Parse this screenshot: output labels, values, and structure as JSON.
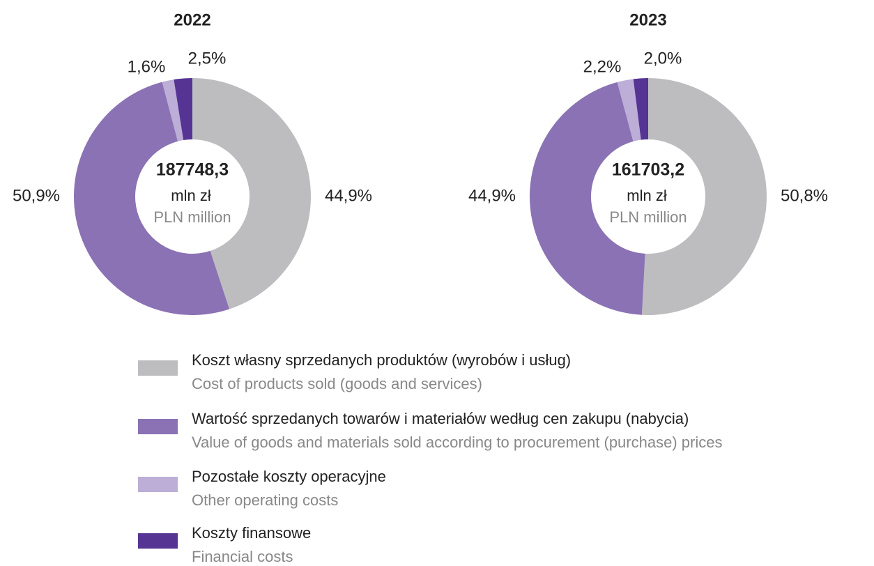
{
  "categories": [
    {
      "label": "Koszt własny sprzedanych produktów (wyrobów i usług)",
      "sublabel": "Cost of products sold (goods and services)"
    },
    {
      "label": "Wartość sprzedanych towarów i materiałów według cen zakupu (nabycia)",
      "sublabel": "Value of goods and materials sold according to procurement (purchase) prices"
    },
    {
      "label": "Pozostałe koszty operacyjne",
      "sublabel": "Other operating costs"
    },
    {
      "label": "Koszty finansowe",
      "sublabel": "Financial costs"
    }
  ],
  "colors": [
    "#bdbdc0",
    "#8a72b4",
    "#bcaed6",
    "#553494"
  ],
  "chart_data": [
    {
      "type": "pie",
      "title": "2022",
      "values": [
        44.9,
        50.9,
        1.6,
        2.5
      ],
      "value_labels": [
        "44,9%",
        "50,9%",
        "1,6%",
        "2,5%"
      ],
      "center": {
        "total": "187748,3",
        "unit": "mln zł",
        "unit_en": "PLN million"
      }
    },
    {
      "type": "pie",
      "title": "2023",
      "values": [
        50.8,
        44.9,
        2.2,
        2.0
      ],
      "value_labels": [
        "50,8%",
        "44,9%",
        "2,2%",
        "2,0%"
      ],
      "center": {
        "total": "161703,2",
        "unit": "mln zł",
        "unit_en": "PLN million"
      }
    }
  ]
}
